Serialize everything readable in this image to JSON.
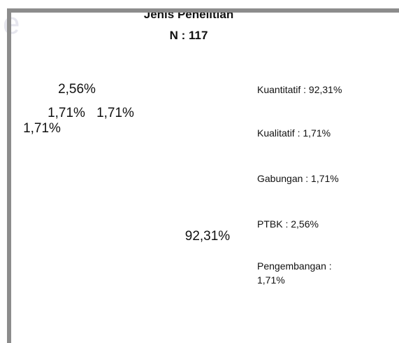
{
  "chart_data": {
    "type": "pie",
    "title": "Jenis Penelitian",
    "subtitle": "N : 117",
    "categories": [
      "Kuantitatif",
      "Kualitatif",
      "Gabungan",
      "PTBK",
      "Pengembangan"
    ],
    "values": [
      92.31,
      1.71,
      1.71,
      2.56,
      1.71
    ],
    "value_labels": [
      "92,31%",
      "1,71%",
      "1,71%",
      "2,56%",
      "1,71%"
    ],
    "legend_labels": [
      "Kuantitatif : 92,31%",
      "Kualitatif : 1,71%",
      "Gabungan : 1,71%",
      "PTBK : 2,56%",
      "Pengembangan : 1,71%"
    ],
    "colors": [
      "#ffffff",
      "#ffffff",
      "#ffffff",
      "#ffffff",
      "#ffffff"
    ]
  }
}
